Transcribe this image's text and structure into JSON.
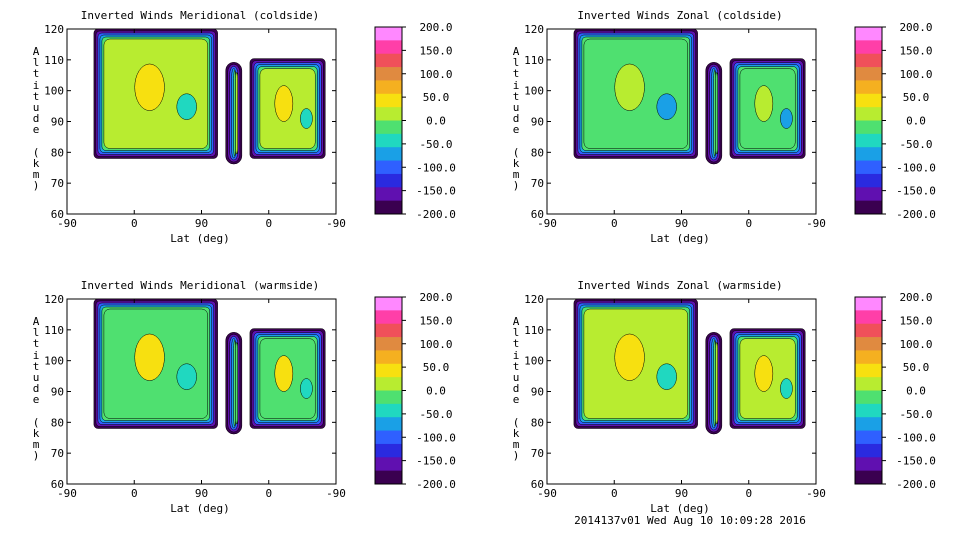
{
  "footer": "2014137v01 Wed Aug 10 10:09:28 2016",
  "colorbar_ticks": [
    "200.0",
    "150.0",
    "100.0",
    "50.0",
    "0.0",
    "-50.0",
    "-100.0",
    "-150.0",
    "-200.0"
  ],
  "colorbar_colors": [
    "#ff88ff",
    "#ff3fa8",
    "#f0505a",
    "#e08a40",
    "#f5b020",
    "#f7e010",
    "#b8ec30",
    "#4fe070",
    "#20d8c0",
    "#1aa0e6",
    "#2f60ff",
    "#2a2ae0",
    "#6010b0",
    "#3a0050"
  ],
  "chart_data": [
    {
      "type": "heatmap",
      "title": "Inverted Winds Meridional (coldside)",
      "xlabel": "Lat (deg)",
      "ylabel": "Altitude (km)",
      "x_ticks": [
        "-90",
        "0",
        "90",
        "0",
        "-90"
      ],
      "y_ticks": [
        "60",
        "70",
        "80",
        "90",
        "100",
        "110",
        "120"
      ],
      "ylim": [
        60,
        120
      ],
      "colorbar_range": [
        -200,
        200
      ],
      "dominant_value": 10
    },
    {
      "type": "heatmap",
      "title": "Inverted Winds Zonal (coldside)",
      "xlabel": "Lat (deg)",
      "ylabel": "Altitude (km)",
      "x_ticks": [
        "-90",
        "0",
        "90",
        "0",
        "-90"
      ],
      "y_ticks": [
        "60",
        "70",
        "80",
        "90",
        "100",
        "110",
        "120"
      ],
      "ylim": [
        60,
        120
      ],
      "colorbar_range": [
        -200,
        200
      ],
      "dominant_value": -20
    },
    {
      "type": "heatmap",
      "title": "Inverted Winds Meridional (warmside)",
      "xlabel": "Lat (deg)",
      "ylabel": "Altitude (km)",
      "x_ticks": [
        "-90",
        "0",
        "90",
        "0",
        "-90"
      ],
      "y_ticks": [
        "60",
        "70",
        "80",
        "90",
        "100",
        "110",
        "120"
      ],
      "ylim": [
        60,
        120
      ],
      "colorbar_range": [
        -200,
        200
      ],
      "dominant_value": -10
    },
    {
      "type": "heatmap",
      "title": "Inverted Winds Zonal (warmside)",
      "xlabel": "Lat (deg)",
      "ylabel": "Altitude (km)",
      "x_ticks": [
        "-90",
        "0",
        "90",
        "0",
        "-90"
      ],
      "y_ticks": [
        "60",
        "70",
        "80",
        "90",
        "100",
        "110",
        "120"
      ],
      "ylim": [
        60,
        120
      ],
      "colorbar_range": [
        -200,
        200
      ],
      "dominant_value": 10
    }
  ]
}
